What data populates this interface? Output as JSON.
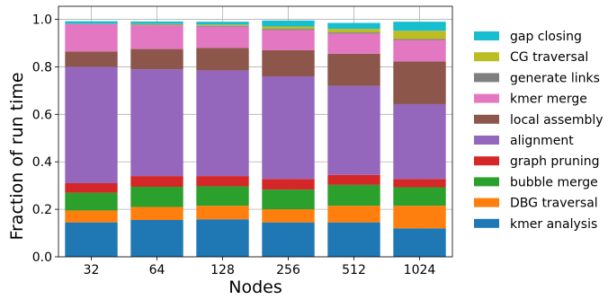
{
  "chart_data": {
    "type": "bar",
    "stacked": true,
    "title": "",
    "xlabel": "Nodes",
    "ylabel": "Fraction of run time",
    "ylim": [
      0.0,
      1.0
    ],
    "grid": true,
    "legend_position": "right",
    "categories": [
      "32",
      "64",
      "128",
      "256",
      "512",
      "1024"
    ],
    "yticks": [
      "0.0",
      "0.2",
      "0.4",
      "0.6",
      "0.8",
      "1.0"
    ],
    "series": [
      {
        "name": "kmer analysis",
        "color": "#1f77b4",
        "values": [
          0.145,
          0.155,
          0.158,
          0.145,
          0.145,
          0.12
        ]
      },
      {
        "name": "DBG traversal",
        "color": "#ff7f0e",
        "values": [
          0.05,
          0.055,
          0.057,
          0.055,
          0.07,
          0.095
        ]
      },
      {
        "name": "bubble merge",
        "color": "#2ca02c",
        "values": [
          0.075,
          0.085,
          0.082,
          0.083,
          0.088,
          0.078
        ]
      },
      {
        "name": "graph pruning",
        "color": "#d62728",
        "values": [
          0.04,
          0.045,
          0.043,
          0.045,
          0.042,
          0.035
        ]
      },
      {
        "name": "alignment",
        "color": "#9467bd",
        "values": [
          0.49,
          0.45,
          0.445,
          0.432,
          0.375,
          0.315
        ]
      },
      {
        "name": "local assembly",
        "color": "#8c564b",
        "values": [
          0.065,
          0.085,
          0.095,
          0.11,
          0.135,
          0.18
        ]
      },
      {
        "name": "kmer merge",
        "color": "#e377c2",
        "values": [
          0.115,
          0.1,
          0.09,
          0.085,
          0.085,
          0.09
        ]
      },
      {
        "name": "generate links",
        "color": "#7f7f7f",
        "values": [
          0.002,
          0.003,
          0.003,
          0.005,
          0.005,
          0.004
        ]
      },
      {
        "name": "CG traversal",
        "color": "#bcbd22",
        "values": [
          0.0,
          0.003,
          0.005,
          0.01,
          0.015,
          0.035
        ]
      },
      {
        "name": "gap closing",
        "color": "#17becf",
        "values": [
          0.01,
          0.01,
          0.012,
          0.025,
          0.025,
          0.038
        ]
      }
    ]
  }
}
